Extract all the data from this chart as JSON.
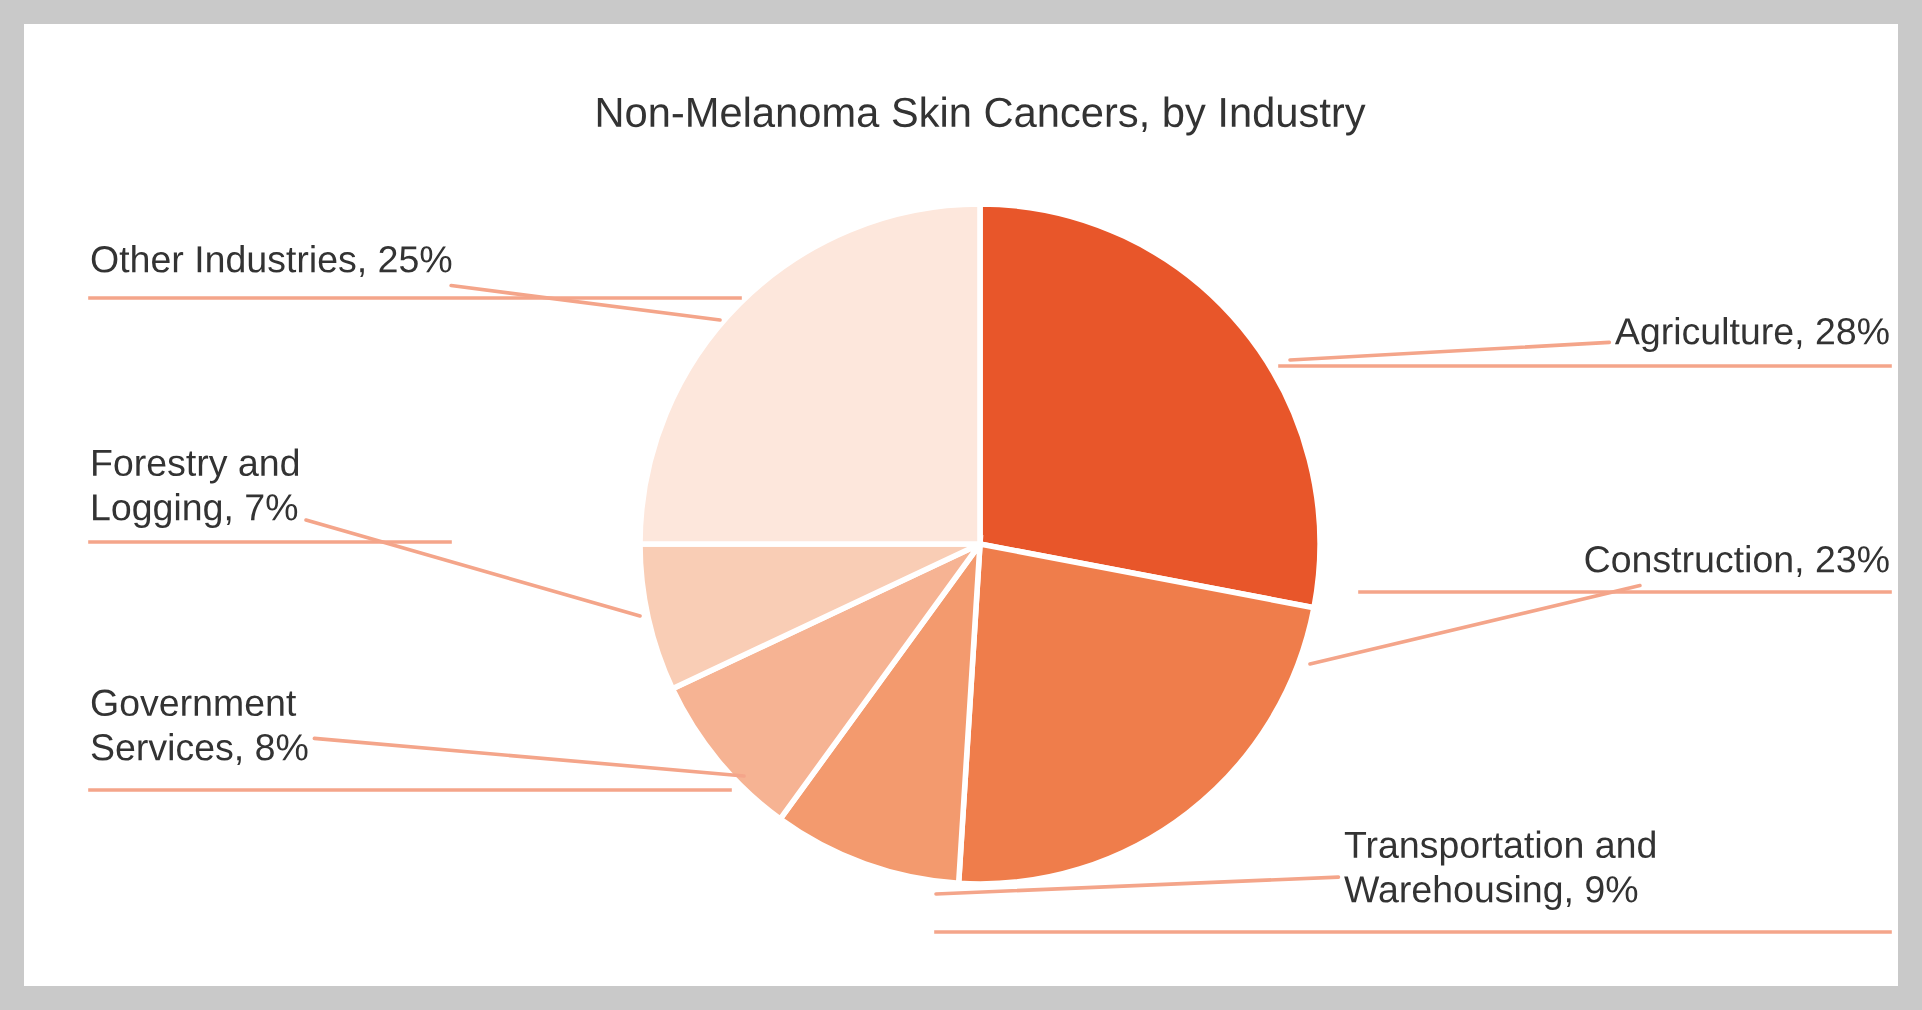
{
  "chart_data": {
    "type": "pie",
    "title": "Non-Melanoma Skin Cancers, by Industry",
    "categories": [
      "Agriculture, 28%",
      "Construction, 23%",
      "Transportation and\nWarehousing, 9%",
      "Government\nServices, 8%",
      "Forestry and\nLogging, 7%",
      "Other Industries, 25%"
    ],
    "values": [
      28,
      23,
      9,
      8,
      7,
      25
    ],
    "colors": [
      "#e8562a",
      "#ef7d4b",
      "#f39a6e",
      "#f6b393",
      "#f9cdb5",
      "#fde7dc"
    ],
    "legend": false
  }
}
